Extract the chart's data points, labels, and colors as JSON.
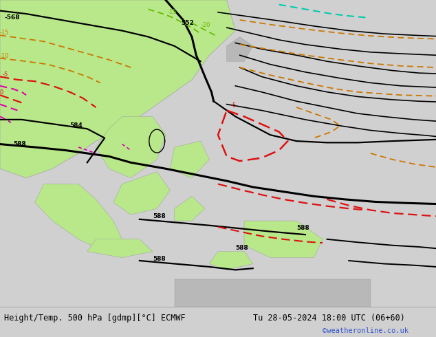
{
  "title_left": "Height/Temp. 500 hPa [gdmp][°C] ECMWF",
  "title_right": "Tu 28-05-2024 18:00 UTC (06+60)",
  "credit": "©weatheronline.co.uk",
  "bg_color": "#d0d0d0",
  "land_green": "#b8e88a",
  "land_gray": "#b8b8b8",
  "sea_color": "#c8c8c8",
  "bottom_bar_color": "#e4e4e4",
  "title_fontsize": 8.5,
  "credit_color": "#3355cc",
  "fig_width": 6.34,
  "fig_height": 4.9,
  "dpi": 100,
  "black_lw": 1.6,
  "thick_lw": 2.2,
  "orange": "#cc7700",
  "red": "#dd1111",
  "green_t": "#66bb00",
  "magenta": "#dd00aa"
}
